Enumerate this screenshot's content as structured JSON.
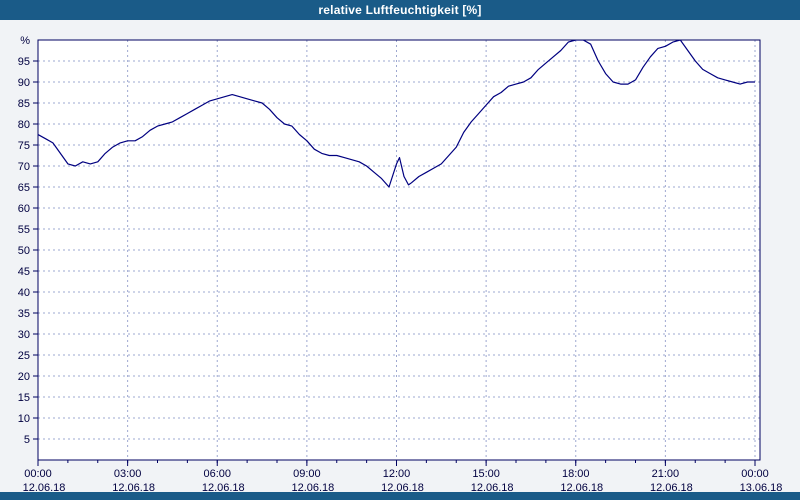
{
  "title_bar": {
    "title": "relative Luftfeuchtigkeit [%]"
  },
  "colors": {
    "title_bar_bg": "#1a5b88",
    "page_bg": "#f1f3f6",
    "plot_bg": "#ffffff",
    "axis": "#000060",
    "grid": "#9ea8d0",
    "line": "#000080",
    "label": "#000040"
  },
  "chart_data": {
    "type": "line",
    "title": "relative Luftfeuchtigkeit [%]",
    "unit_label": "%",
    "ylim": [
      0,
      100
    ],
    "xlim_hours": [
      0,
      24
    ],
    "grid": true,
    "legend_position": "none",
    "y_ticks": [
      5,
      10,
      15,
      20,
      25,
      30,
      35,
      40,
      45,
      50,
      55,
      60,
      65,
      70,
      75,
      80,
      85,
      90,
      95
    ],
    "x_major_ticks": [
      {
        "hour": 0,
        "time": "00:00",
        "date": "12.06.18"
      },
      {
        "hour": 3,
        "time": "03:00",
        "date": "12.06.18"
      },
      {
        "hour": 6,
        "time": "06:00",
        "date": "12.06.18"
      },
      {
        "hour": 9,
        "time": "09:00",
        "date": "12.06.18"
      },
      {
        "hour": 12,
        "time": "12:00",
        "date": "12.06.18"
      },
      {
        "hour": 15,
        "time": "15:00",
        "date": "12.06.18"
      },
      {
        "hour": 18,
        "time": "18:00",
        "date": "12.06.18"
      },
      {
        "hour": 21,
        "time": "21:00",
        "date": "12.06.18"
      },
      {
        "hour": 24,
        "time": "00:00",
        "date": "13.06.18"
      }
    ],
    "series": [
      {
        "name": "relative Luftfeuchtigkeit",
        "x": [
          0,
          0.25,
          0.5,
          0.75,
          1.0,
          1.25,
          1.5,
          1.75,
          2.0,
          2.25,
          2.5,
          2.75,
          3.0,
          3.25,
          3.5,
          3.75,
          4.0,
          4.25,
          4.5,
          4.75,
          5.0,
          5.25,
          5.5,
          5.75,
          6.0,
          6.25,
          6.5,
          6.75,
          7.0,
          7.25,
          7.5,
          7.75,
          8.0,
          8.25,
          8.5,
          8.75,
          9.0,
          9.25,
          9.5,
          9.75,
          10.0,
          10.25,
          10.5,
          10.75,
          11.0,
          11.25,
          11.5,
          11.75,
          12.0,
          12.1,
          12.25,
          12.4,
          12.5,
          12.75,
          13.0,
          13.25,
          13.5,
          13.75,
          14.0,
          14.25,
          14.5,
          14.75,
          15.0,
          15.25,
          15.5,
          15.75,
          16.0,
          16.25,
          16.5,
          16.75,
          17.0,
          17.25,
          17.5,
          17.75,
          18.0,
          18.25,
          18.5,
          18.75,
          19.0,
          19.25,
          19.5,
          19.75,
          20.0,
          20.25,
          20.5,
          20.75,
          21.0,
          21.25,
          21.5,
          21.75,
          22.0,
          22.25,
          22.5,
          22.75,
          23.0,
          23.25,
          23.5,
          23.75,
          24.0
        ],
        "y": [
          77.5,
          76.5,
          75.5,
          73,
          70.5,
          70,
          71,
          70.5,
          71,
          73,
          74.5,
          75.5,
          76,
          76,
          77,
          78.5,
          79.5,
          80,
          80.5,
          81.5,
          82.5,
          83.5,
          84.5,
          85.5,
          86,
          86.5,
          87,
          86.5,
          86,
          85.5,
          85,
          83.5,
          81.5,
          80,
          79.5,
          77.5,
          76,
          74,
          73,
          72.5,
          72.5,
          72,
          71.5,
          71,
          70,
          68.5,
          67,
          65,
          70.5,
          72,
          67.5,
          65.5,
          66,
          67.5,
          68.5,
          69.5,
          70.5,
          72.5,
          74.5,
          78,
          80.5,
          82.5,
          84.5,
          86.5,
          87.5,
          89,
          89.5,
          90,
          91,
          93,
          94.5,
          96,
          97.5,
          99.5,
          100,
          100,
          99,
          95,
          92,
          90,
          89.5,
          89.5,
          90.5,
          93.5,
          96,
          98,
          98.5,
          99.5,
          100,
          97.5,
          95,
          93,
          92,
          91,
          90.5,
          90,
          89.5,
          90,
          90
        ]
      }
    ]
  }
}
